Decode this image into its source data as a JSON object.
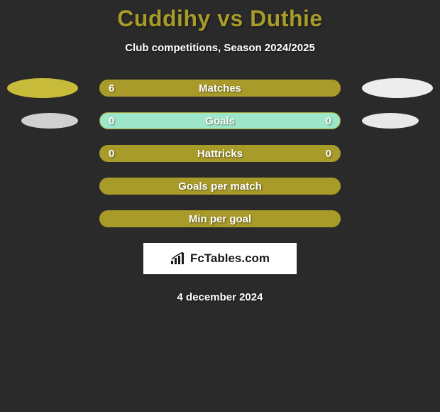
{
  "title": "Cuddihy vs Duthie",
  "subtitle": "Club competitions, Season 2024/2025",
  "colors": {
    "background": "#2a2a2a",
    "accent": "#a89b2a",
    "accent_light": "#b5a834",
    "ellipse_left": "#c8bb3a",
    "ellipse_right": "#ededed",
    "alt_row_bg": "#9ee6c9",
    "white": "#ffffff"
  },
  "ellipses": {
    "row0": {
      "left_color": "#c8bb3a",
      "right_color": "#ededed"
    },
    "row1": {
      "left_color": "#d0d0d0",
      "right_color": "#e8e8e8"
    }
  },
  "rows": [
    {
      "label": "Matches",
      "left_val": "6",
      "right_val": "",
      "bg": "#a89b2a",
      "left_fill": {
        "width_pct": 100,
        "color": "#a89b2a"
      },
      "right_fill": {
        "width_pct": 0,
        "color": "#a89b2a"
      },
      "show_ellipse": true,
      "ellipse_key": "row0"
    },
    {
      "label": "Goals",
      "left_val": "0",
      "right_val": "0",
      "bg": "#9ee6c9",
      "left_fill": {
        "width_pct": 0,
        "color": "#a89b2a"
      },
      "right_fill": {
        "width_pct": 0,
        "color": "#a89b2a"
      },
      "show_ellipse": true,
      "ellipse_key": "row1",
      "ellipse_inner": true
    },
    {
      "label": "Hattricks",
      "left_val": "0",
      "right_val": "0",
      "bg": "#a89b2a",
      "left_fill": {
        "width_pct": 0,
        "color": "#a89b2a"
      },
      "right_fill": {
        "width_pct": 0,
        "color": "#a89b2a"
      },
      "show_ellipse": false
    },
    {
      "label": "Goals per match",
      "left_val": "",
      "right_val": "",
      "bg": "#a89b2a",
      "left_fill": {
        "width_pct": 0,
        "color": "#a89b2a"
      },
      "right_fill": {
        "width_pct": 0,
        "color": "#a89b2a"
      },
      "show_ellipse": false
    },
    {
      "label": "Min per goal",
      "left_val": "",
      "right_val": "",
      "bg": "#a89b2a",
      "left_fill": {
        "width_pct": 0,
        "color": "#a89b2a"
      },
      "right_fill": {
        "width_pct": 0,
        "color": "#a89b2a"
      },
      "show_ellipse": false
    }
  ],
  "logo_text": "FcTables.com",
  "date": "4 december 2024"
}
